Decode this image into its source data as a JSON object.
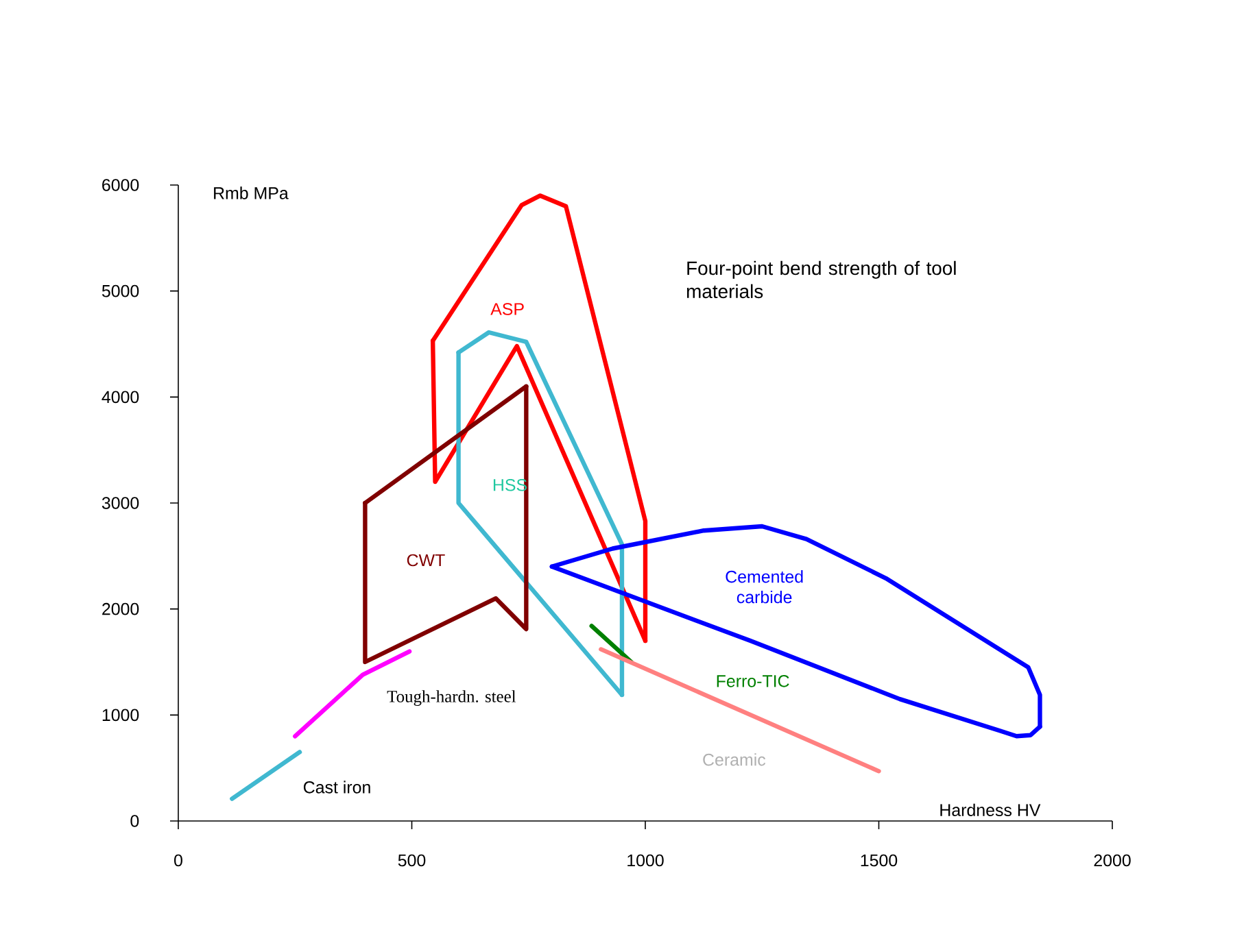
{
  "chart_data": {
    "type": "line",
    "title": "Four-point bend strength of tool materials",
    "xlabel": "Hardness HV",
    "ylabel": "Rmb  MPa",
    "xlim": [
      0,
      2000
    ],
    "ylim": [
      0,
      6000
    ],
    "xticks": [
      0,
      500,
      1000,
      1500,
      2000
    ],
    "yticks": [
      0,
      1000,
      2000,
      3000,
      4000,
      5000,
      6000
    ],
    "marker": "none",
    "line_style": "solid",
    "series": [
      {
        "color": "#ff0000",
        "x": [
          545,
          735,
          775,
          830,
          1000,
          1000
        ],
        "values": [
          4530,
          5810,
          5900,
          5800,
          2830,
          1700
        ]
      },
      {
        "color": "#ff0000",
        "x": [
          545,
          550,
          725,
          1000
        ],
        "values": [
          4530,
          3200,
          4480,
          1700
        ]
      },
      {
        "color": "#40b8d0",
        "x": [
          600,
          665,
          745,
          950,
          950
        ],
        "values": [
          4420,
          4610,
          4520,
          2610,
          1190
        ]
      },
      {
        "color": "#40b8d0",
        "x": [
          600,
          600,
          950
        ],
        "values": [
          4420,
          3000,
          1190
        ]
      },
      {
        "color": "#800000",
        "x": [
          400,
          745
        ],
        "values": [
          3000,
          4100
        ]
      },
      {
        "color": "#800000",
        "x": [
          400,
          400,
          680,
          745,
          745
        ],
        "values": [
          3000,
          1500,
          2100,
          1810,
          4100
        ]
      },
      {
        "color": "#0000ff",
        "x": [
          800,
          930,
          1125,
          1250,
          1345,
          1515,
          1780,
          1820,
          1845,
          1845
        ],
        "values": [
          2400,
          2570,
          2740,
          2780,
          2660,
          2290,
          1560,
          1450,
          1190,
          890
        ]
      },
      {
        "color": "#0000ff",
        "x": [
          800,
          1225,
          1545,
          1760,
          1795,
          1825,
          1845
        ],
        "values": [
          2400,
          1700,
          1150,
          850,
          800,
          810,
          890
        ]
      },
      {
        "color": "#008000",
        "x": [
          885,
          970
        ],
        "values": [
          1840,
          1500
        ]
      },
      {
        "color": "#ff8080",
        "x": [
          905,
          1500
        ],
        "values": [
          1620,
          470
        ]
      },
      {
        "color": "#ff00ff",
        "x": [
          250,
          395,
          495
        ],
        "values": [
          800,
          1380,
          1600
        ]
      },
      {
        "color": "#40b8d0",
        "x": [
          115,
          260
        ],
        "values": [
          210,
          650
        ]
      }
    ],
    "annotations": [
      "ASP",
      "HSS",
      "CWT",
      "Cemented carbide",
      "Ferro-TIC",
      "Ceramic",
      "Tough-hardn. steel",
      "Cast iron"
    ]
  }
}
